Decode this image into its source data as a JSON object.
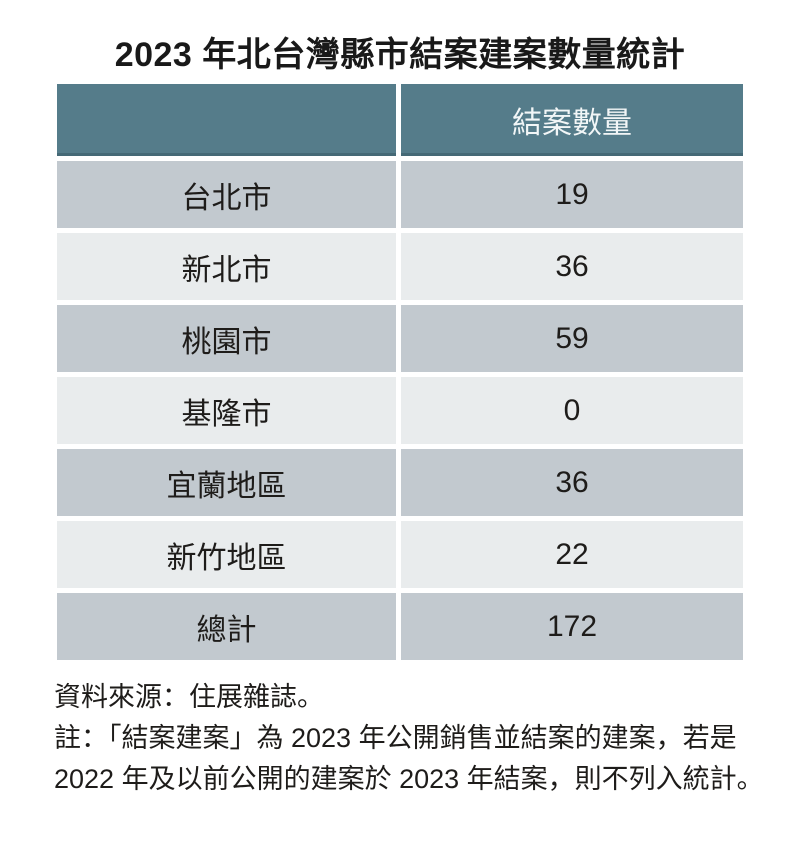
{
  "title": "2023 年北台灣縣市結案建案數量統計",
  "table": {
    "header": {
      "region_label": "",
      "count_label": "結案數量"
    },
    "rows": [
      {
        "label": "台北市",
        "value": "19"
      },
      {
        "label": "新北市",
        "value": "36"
      },
      {
        "label": "桃園市",
        "value": "59"
      },
      {
        "label": "基隆市",
        "value": "0"
      },
      {
        "label": "宜蘭地區",
        "value": "36"
      },
      {
        "label": "新竹地區",
        "value": "22"
      },
      {
        "label": "總計",
        "value": "172"
      }
    ]
  },
  "footer": {
    "source": "資料來源：住展雜誌。",
    "note_line1": "註：「結案建案」為 2023 年公開銷售並結案的建案，若是",
    "note_line2": "2022 年及以前公開的建案於 2023 年結案，則不列入統計。"
  },
  "colors": {
    "header_bg": "#557c8a",
    "header_text": "#f2f6f7",
    "row_dark": "#c2c9cf",
    "row_light": "#e9eced",
    "body_text": "#1e1c1a",
    "gap_white": "#ffffff"
  },
  "chart_data": {
    "type": "table",
    "title": "2023 年北台灣縣市結案建案數量統計",
    "series_label": "結案數量",
    "categories": [
      "台北市",
      "新北市",
      "桃園市",
      "基隆市",
      "宜蘭地區",
      "新竹地區",
      "總計"
    ],
    "values": [
      19,
      36,
      59,
      0,
      36,
      22,
      172
    ],
    "source": "資料來源：住展雜誌。",
    "note": "註：「結案建案」為 2023 年公開銷售並結案的建案，若是 2022 年及以前公開的建案於 2023 年結案，則不列入統計。"
  }
}
